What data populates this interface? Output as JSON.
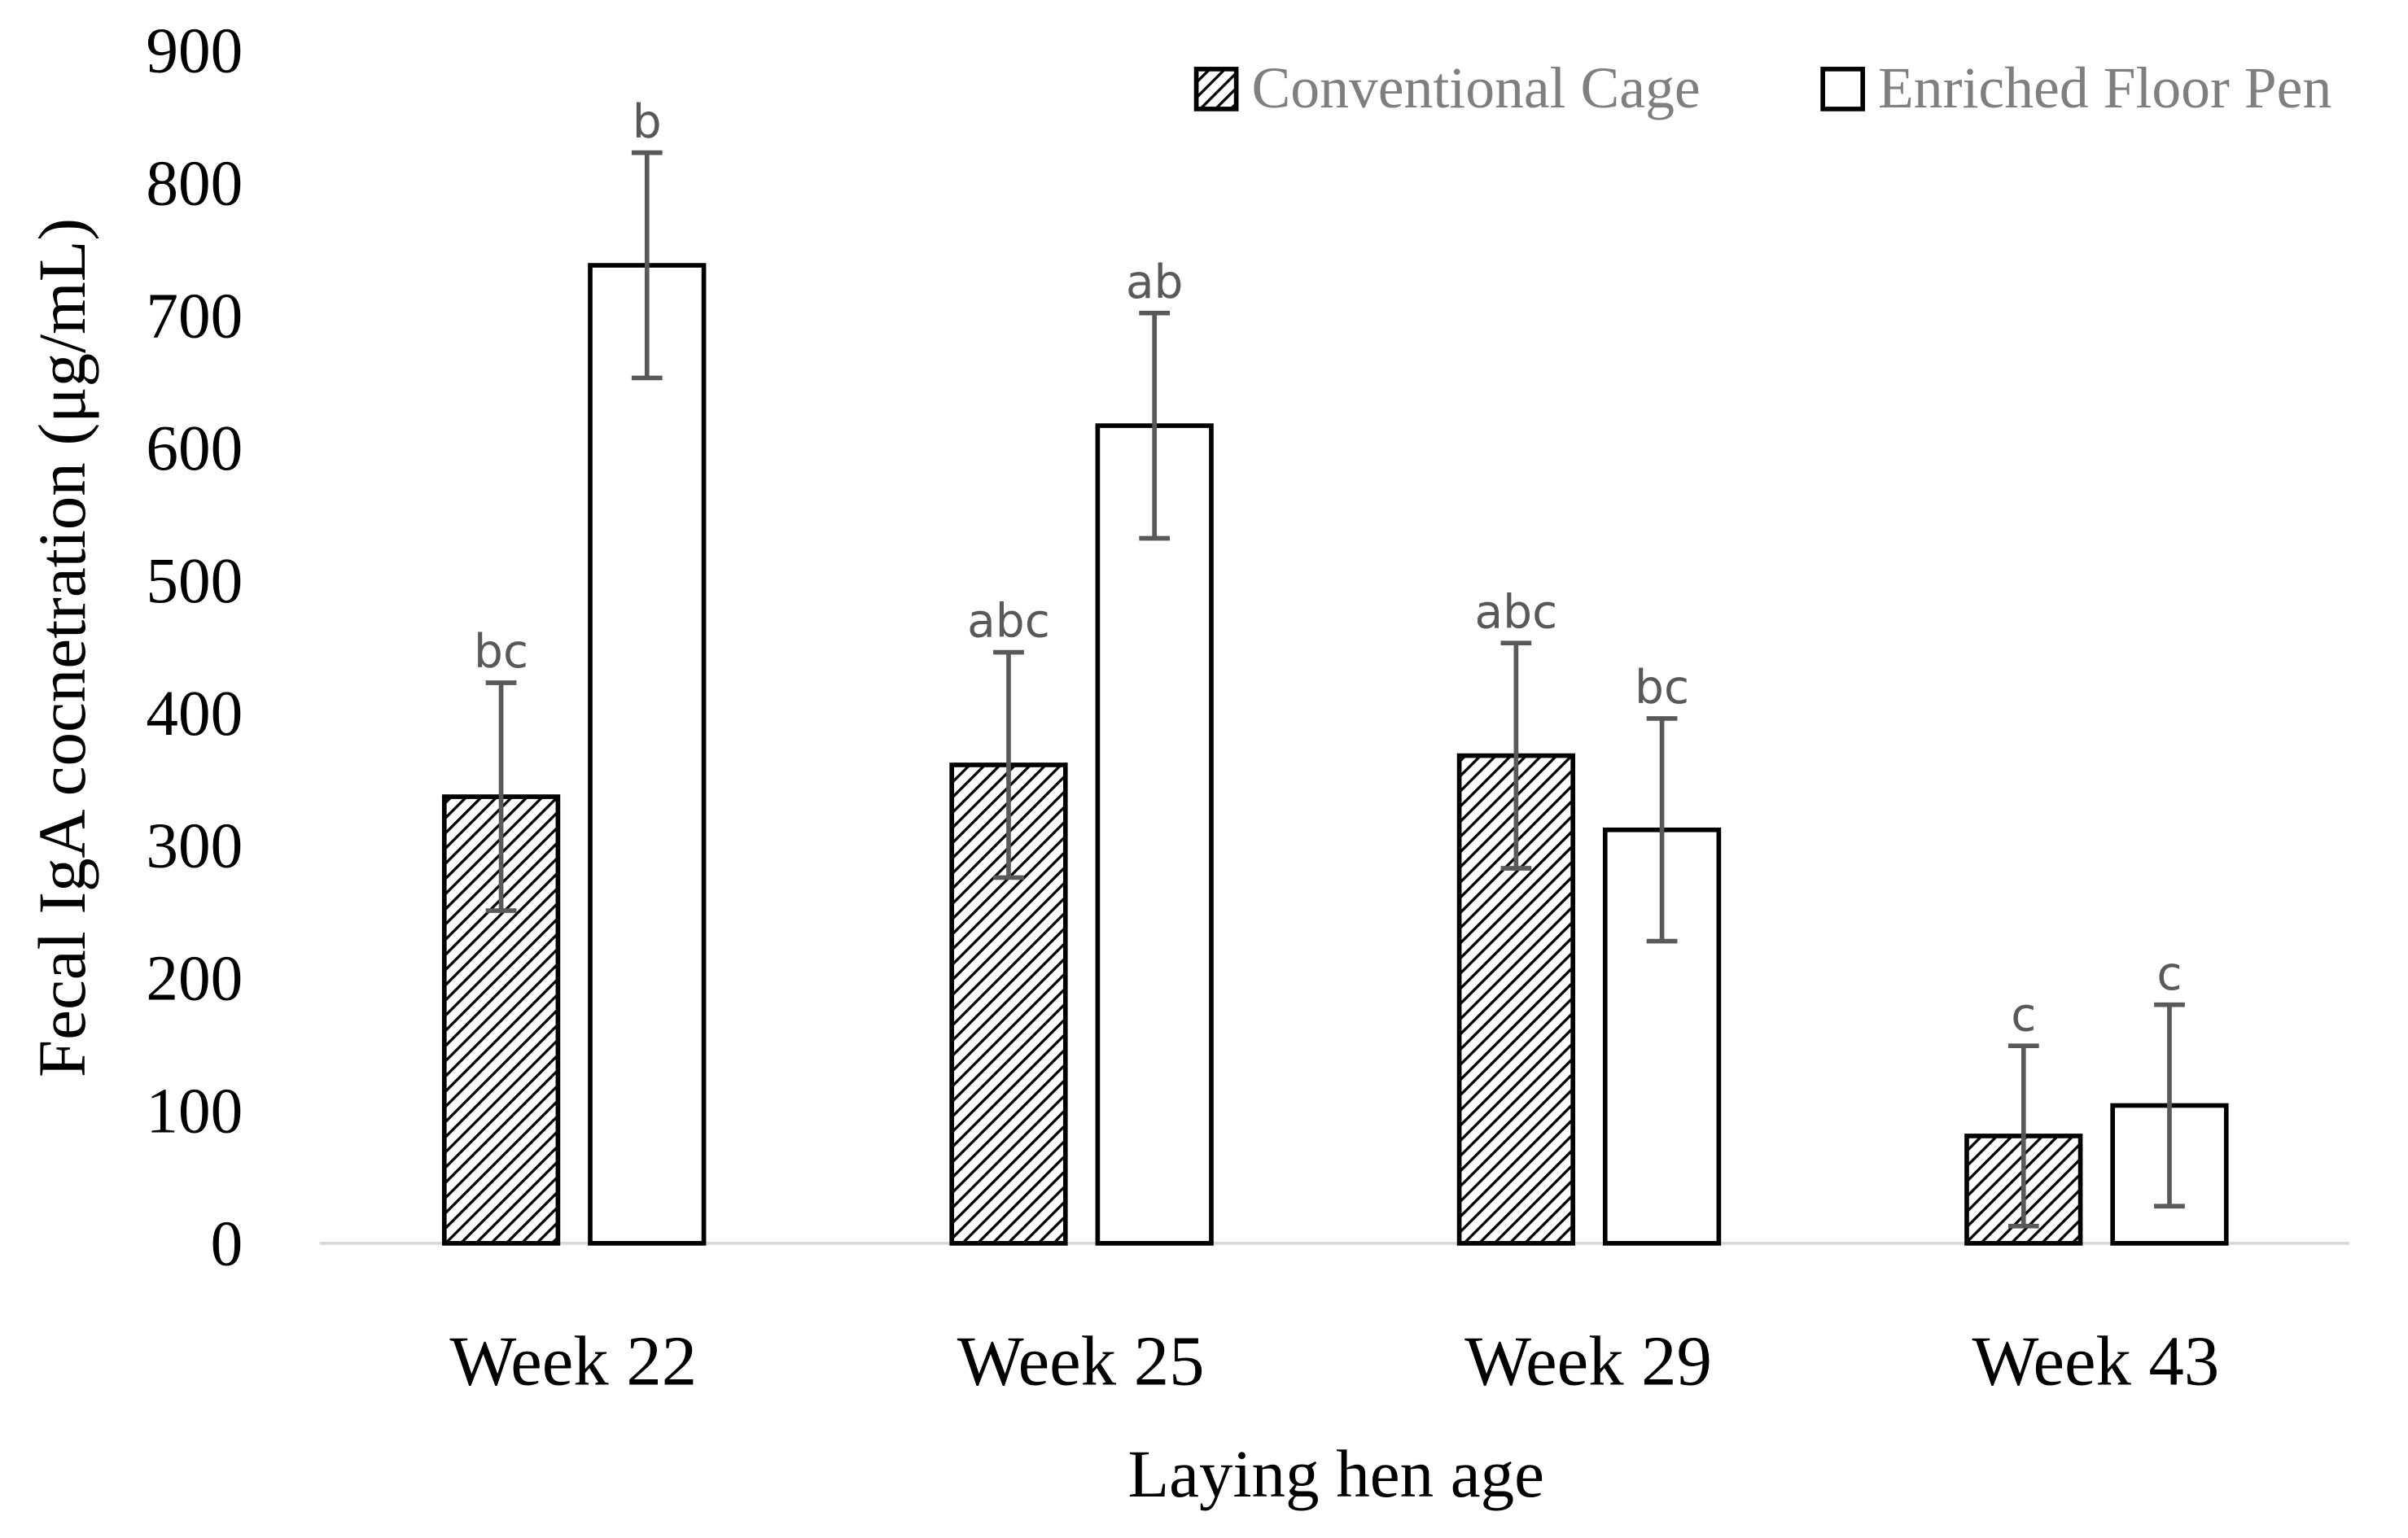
{
  "chart_data": {
    "type": "bar",
    "x_label": "Laying hen age",
    "y_label": "Fecal IgA cocnetration (μg/mL)",
    "categories": [
      "Week 22",
      "Week 25",
      "Week 29",
      "Week 43"
    ],
    "series": [
      {
        "name": "Conventional Cage",
        "color": "#000000",
        "hatch": true,
        "values": [
          337,
          361,
          368,
          81
        ],
        "errors": [
          86,
          85,
          85,
          68
        ],
        "labels": [
          "bc",
          "abc",
          "abc",
          "c"
        ]
      },
      {
        "name": "Enriched Floor Pen",
        "color": "#000000",
        "hatch": false,
        "values": [
          738,
          617,
          312,
          104
        ],
        "errors": [
          85,
          85,
          84,
          76
        ],
        "labels": [
          "b",
          "ab",
          "bc",
          "c"
        ]
      }
    ],
    "ylim": [
      0,
      900
    ],
    "yticks": [
      0,
      100,
      200,
      300,
      400,
      500,
      600,
      700,
      800,
      900
    ],
    "grid": false,
    "legend": "top-right"
  }
}
